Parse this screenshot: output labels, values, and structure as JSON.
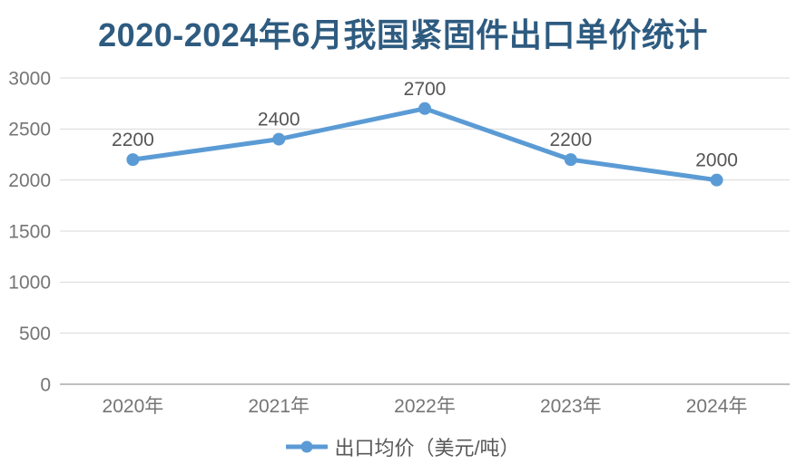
{
  "title": "2020-2024年6月我国紧固件出口单价统计",
  "colors": {
    "series": "#5B9BD5",
    "title": "#2E5B80",
    "grid": "#D9D9D9",
    "axis": "#BFBFBF",
    "tick_label": "#757575",
    "data_label": "#555555",
    "legend_text": "#595959",
    "background": "#FFFFFF"
  },
  "chart_data": {
    "type": "line",
    "title": "2020-2024年6月我国紧固件出口单价统计",
    "categories": [
      "2020年",
      "2021年",
      "2022年",
      "2023年",
      "2024年"
    ],
    "series": [
      {
        "name": "出口均价（美元/吨）",
        "values": [
          2200,
          2400,
          2700,
          2200,
          2000
        ]
      }
    ],
    "data_labels": true,
    "xlabel": "",
    "ylabel": "",
    "ylim": [
      0,
      3000
    ],
    "ytick_interval": 500,
    "yticks": [
      0,
      500,
      1000,
      1500,
      2000,
      2500,
      3000
    ],
    "grid": true,
    "legend_position": "bottom"
  }
}
